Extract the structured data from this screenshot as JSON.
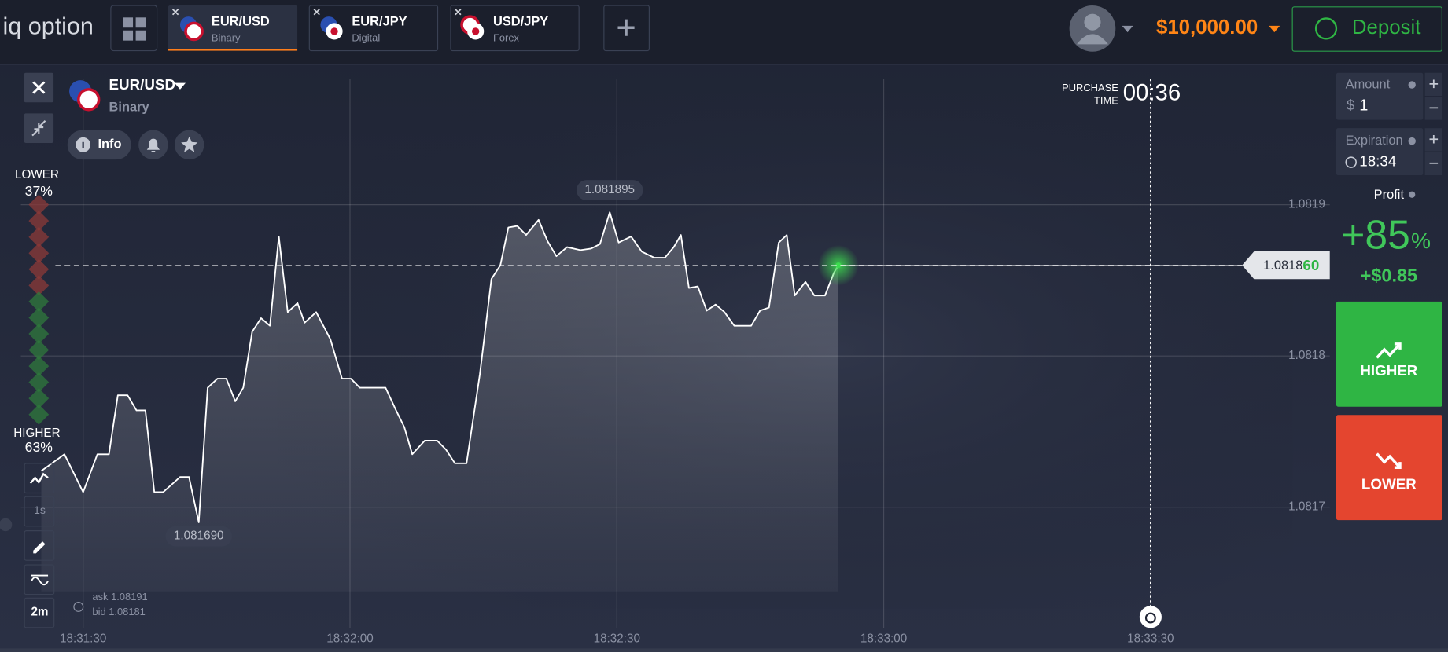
{
  "header": {
    "logo": "iq option",
    "tabs": [
      {
        "title": "EUR/USD",
        "subtitle": "Binary"
      },
      {
        "title": "EUR/JPY",
        "subtitle": "Digital"
      },
      {
        "title": "USD/JPY",
        "subtitle": "Forex"
      }
    ],
    "balance": "$10,000.00",
    "deposit": "Deposit"
  },
  "asset": {
    "title": "EUR/USD",
    "subtitle": "Binary",
    "info": "Info"
  },
  "sentiment": {
    "lower_label": "LOWER",
    "lower_pct": "37%",
    "higher_label": "HIGHER",
    "higher_pct": "63%"
  },
  "tools": {
    "interval": "1s",
    "timeframe": "2m"
  },
  "purchase": {
    "label_1": "PURCHASE",
    "label_2": "TIME",
    "time": "00:36"
  },
  "quote": {
    "ask": "ask 1.08191",
    "bid": "bid 1.08181"
  },
  "chart": {
    "type": "line",
    "x": [
      66685.3,
      66687.9,
      66690,
      66691.6,
      66692.9,
      66693.9,
      66695.0,
      66696.0,
      66697.0,
      66698.0,
      66699.0,
      66700.9,
      66701.9,
      66703.0,
      66704.0,
      66705.1,
      66706.1,
      66707.1,
      66708.0,
      66709.0,
      66710.0,
      66711.0,
      66712.0,
      66713.0,
      66714.1,
      66714.9,
      66716.2,
      66717.8,
      66719.1,
      66720.1,
      66721.1,
      66724.0,
      66725.1,
      66726.1,
      66727.0,
      66728.4,
      66729.8,
      66730.8,
      66731.8,
      66733.1,
      66734.6,
      66735.9,
      66736.9,
      66737.8,
      66738.8,
      66739.8,
      66741.2,
      66742.2,
      66743.2,
      66744.4,
      66745.9,
      66747.1,
      66748.1,
      66749.2,
      66750.2,
      66751.6,
      66752.8,
      66754.2,
      66755.4,
      66756.4,
      66757.2,
      66758.1,
      66759.1,
      66760.1,
      66761.1,
      66762.1,
      66763.2,
      66765.1,
      66766.1,
      66767.1,
      66768.2,
      66769.1,
      66770.0,
      66771.2,
      66772.2,
      66773.4,
      66774.4,
      66774.9
    ],
    "values": [
      1.081724,
      1.081735,
      1.08171,
      1.081735,
      1.081735,
      1.081774,
      1.081774,
      1.081764,
      1.081764,
      1.08171,
      1.08171,
      1.08172,
      1.08172,
      1.08169,
      1.081779,
      1.081785,
      1.081785,
      1.08177,
      1.081779,
      1.081816,
      1.081825,
      1.08182,
      1.081879,
      1.081829,
      1.081835,
      1.081822,
      1.081829,
      1.081811,
      1.081785,
      1.081785,
      1.081779,
      1.081779,
      1.081765,
      1.081753,
      1.081735,
      1.081744,
      1.081744,
      1.081738,
      1.081729,
      1.081729,
      1.081788,
      1.081851,
      1.08186,
      1.081885,
      1.081886,
      1.08188,
      1.08189,
      1.081876,
      1.081866,
      1.081872,
      1.08187,
      1.081871,
      1.081874,
      1.081895,
      1.081875,
      1.081879,
      1.081869,
      1.081865,
      1.081865,
      1.081872,
      1.08188,
      1.081845,
      1.081846,
      1.08183,
      1.081834,
      1.081829,
      1.08182,
      1.08182,
      1.08183,
      1.081832,
      1.081875,
      1.08188,
      1.08184,
      1.081849,
      1.08184,
      1.08184,
      1.081855,
      1.08186
    ],
    "color": "#ffffff",
    "xlim": [
      66683,
      66830
    ],
    "ylim": [
      1.08162,
      1.08199
    ],
    "xticks": [
      {
        "value": 66690,
        "label": "18:31:30"
      },
      {
        "value": 66720,
        "label": "18:32:00"
      },
      {
        "value": 66750,
        "label": "18:32:30"
      },
      {
        "value": 66780,
        "label": "18:33:00"
      },
      {
        "value": 66810,
        "label": "18:33:30"
      }
    ],
    "yticks": [
      1.0817,
      1.0818,
      1.0819
    ],
    "grid": true,
    "annotations": [
      {
        "x": 66749.2,
        "y": 1.081895,
        "label": "1.081895",
        "side": "above"
      },
      {
        "x": 66703.0,
        "y": 1.08169,
        "label": "1.081690",
        "side": "below"
      }
    ],
    "current": {
      "value": 1.08186,
      "label_main": "1.0818",
      "label_tail": "60"
    },
    "purchase_x": 66810
  },
  "panel": {
    "amount_label": "Amount",
    "amount_currency": "$",
    "amount": "1",
    "expiration_label": "Expiration",
    "expiration": "18:34",
    "profit_label": "Profit",
    "profit_pct": "+85",
    "pct_sign": "%",
    "profit_amount": "+$0.85",
    "higher": "HIGHER",
    "lower": "LOWER"
  }
}
